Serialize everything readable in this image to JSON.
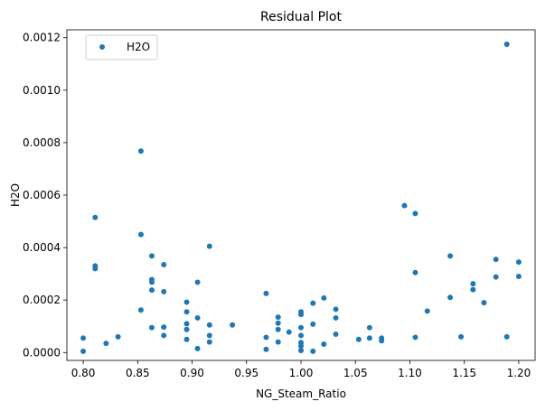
{
  "chart_data": {
    "type": "scatter",
    "title": "Residual Plot",
    "xlabel": "NG_Steam_Ratio",
    "ylabel": "H2O",
    "xlim": [
      0.785,
      1.215
    ],
    "ylim": [
      -3e-05,
      0.00123
    ],
    "xticks": [
      "0.80",
      "0.85",
      "0.90",
      "0.95",
      "1.00",
      "1.05",
      "1.10",
      "1.15",
      "1.20"
    ],
    "xtick_values": [
      0.8,
      0.85,
      0.9,
      0.95,
      1.0,
      1.05,
      1.1,
      1.15,
      1.2
    ],
    "yticks": [
      "0.0000",
      "0.0002",
      "0.0004",
      "0.0006",
      "0.0008",
      "0.0010",
      "0.0012"
    ],
    "ytick_values": [
      0.0,
      0.0002,
      0.0004,
      0.0006,
      0.0008,
      0.001,
      0.0012
    ],
    "grid": false,
    "legend_position": "top-left",
    "series": [
      {
        "name": "H2O",
        "color": "#1f77b4",
        "points": [
          [
            0.8,
            5.5e-05
          ],
          [
            0.8,
            5e-06
          ],
          [
            0.811,
            0.000515
          ],
          [
            0.811,
            0.00033
          ],
          [
            0.811,
            0.00032
          ],
          [
            0.821,
            3.5e-05
          ],
          [
            0.832,
            6e-05
          ],
          [
            0.853,
            0.000768
          ],
          [
            0.853,
            0.00045
          ],
          [
            0.853,
            0.000162
          ],
          [
            0.863,
            0.000368
          ],
          [
            0.863,
            0.000278
          ],
          [
            0.863,
            0.000268
          ],
          [
            0.863,
            0.000238
          ],
          [
            0.863,
            9.5e-05
          ],
          [
            0.874,
            0.000335
          ],
          [
            0.874,
            0.000232
          ],
          [
            0.874,
            9.7e-05
          ],
          [
            0.874,
            6.5e-05
          ],
          [
            0.895,
            0.000192
          ],
          [
            0.895,
            0.000155
          ],
          [
            0.895,
            0.00011
          ],
          [
            0.895,
            8.8e-05
          ],
          [
            0.895,
            5e-05
          ],
          [
            0.905,
            0.000268
          ],
          [
            0.905,
            0.000132
          ],
          [
            0.905,
            1.5e-05
          ],
          [
            0.916,
            0.000405
          ],
          [
            0.916,
            0.000105
          ],
          [
            0.916,
            6.5e-05
          ],
          [
            0.916,
            4e-05
          ],
          [
            0.937,
            0.000105
          ],
          [
            0.968,
            0.000225
          ],
          [
            0.968,
            5.8e-05
          ],
          [
            0.968,
            1.2e-05
          ],
          [
            0.979,
            0.000135
          ],
          [
            0.979,
            0.000112
          ],
          [
            0.979,
            8.8e-05
          ],
          [
            0.979,
            4e-05
          ],
          [
            0.989,
            7.8e-05
          ],
          [
            1.0,
            0.000155
          ],
          [
            1.0,
            0.000145
          ],
          [
            1.0,
            9.5e-05
          ],
          [
            1.0,
            6.5e-05
          ],
          [
            1.0,
            3.8e-05
          ],
          [
            1.0,
            2.5e-05
          ],
          [
            1.0,
            8e-06
          ],
          [
            1.011,
            0.000188
          ],
          [
            1.011,
            0.000108
          ],
          [
            1.011,
            5e-06
          ],
          [
            1.021,
            0.000208
          ],
          [
            1.021,
            3.2e-05
          ],
          [
            1.032,
            0.000165
          ],
          [
            1.032,
            0.000132
          ],
          [
            1.032,
            7e-05
          ],
          [
            1.053,
            5e-05
          ],
          [
            1.063,
            9.5e-05
          ],
          [
            1.063,
            5.5e-05
          ],
          [
            1.074,
            5.5e-05
          ],
          [
            1.074,
            4.5e-05
          ],
          [
            1.095,
            0.00056
          ],
          [
            1.105,
            0.00053
          ],
          [
            1.105,
            0.000305
          ],
          [
            1.105,
            5.8e-05
          ],
          [
            1.116,
            0.000158
          ],
          [
            1.137,
            0.000368
          ],
          [
            1.137,
            0.00021
          ],
          [
            1.147,
            6e-05
          ],
          [
            1.158,
            0.000262
          ],
          [
            1.158,
            0.00024
          ],
          [
            1.168,
            0.00019
          ],
          [
            1.179,
            0.000355
          ],
          [
            1.179,
            0.000288
          ],
          [
            1.189,
            0.001175
          ],
          [
            1.189,
            6e-05
          ],
          [
            1.2,
            0.000345
          ],
          [
            1.2,
            0.00029
          ]
        ]
      }
    ]
  }
}
